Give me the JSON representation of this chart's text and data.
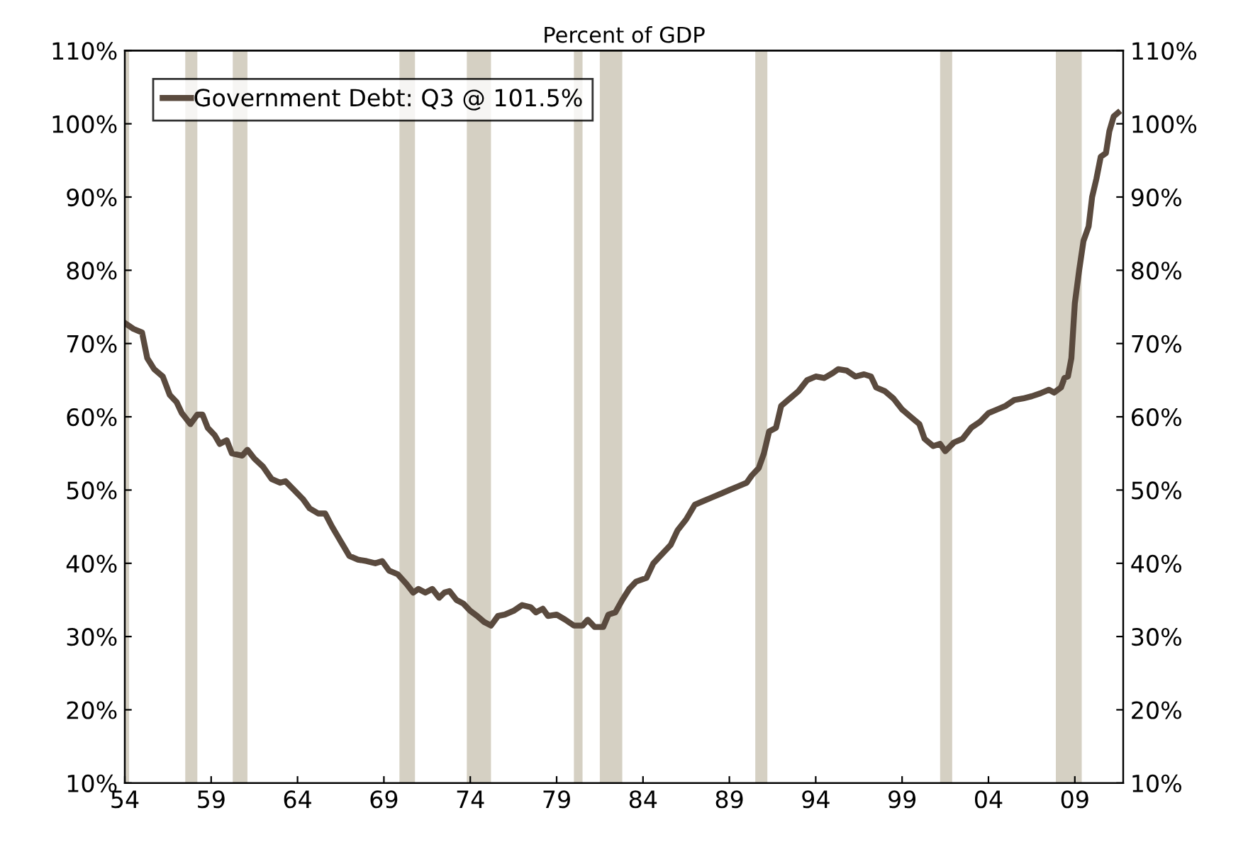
{
  "chart_data": {
    "type": "line",
    "title": "Percent of GDP",
    "x": [
      1954.0,
      1954.5,
      1955,
      1955.3,
      1955.7,
      1956.2,
      1956.6,
      1957,
      1957.3,
      1957.8,
      1958.2,
      1958.5,
      1958.8,
      1959.2,
      1959.5,
      1959.9,
      1960.2,
      1960.8,
      1961.1,
      1961.5,
      1962,
      1962.5,
      1963,
      1963.3,
      1963.8,
      1964.3,
      1964.7,
      1965.2,
      1965.6,
      1966,
      1966.5,
      1967,
      1967.5,
      1968,
      1968.5,
      1968.9,
      1969.3,
      1969.8,
      1970.3,
      1970.7,
      1971,
      1971.4,
      1971.8,
      1972.2,
      1972.5,
      1972.8,
      1973.2,
      1973.6,
      1974,
      1974.4,
      1974.8,
      1975.2,
      1975.6,
      1976,
      1976.5,
      1977,
      1977.5,
      1977.8,
      1978.2,
      1978.5,
      1979,
      1979.5,
      1980,
      1980.5,
      1980.8,
      1981.2,
      1981.7,
      1982,
      1982.4,
      1982.8,
      1983.2,
      1983.6,
      1984.2,
      1984.6,
      1985,
      1985.6,
      1986,
      1986.5,
      1987,
      1987.5,
      1988,
      1988.5,
      1989,
      1989.5,
      1990,
      1990.3,
      1990.7,
      1991,
      1991.3,
      1991.7,
      1992,
      1992.5,
      1993,
      1993.5,
      1994,
      1994.5,
      1995,
      1995.3,
      1995.8,
      1996.3,
      1996.8,
      1997.2,
      1997.5,
      1998,
      1998.5,
      1999,
      1999.5,
      2000,
      2000.3,
      2000.8,
      2001.2,
      2001.5,
      2002,
      2002.5,
      2003,
      2003.5,
      2004,
      2004.5,
      2005,
      2005.5,
      2006,
      2006.5,
      2007,
      2007.5,
      2007.8,
      2008.2,
      2008.4,
      2008.6,
      2008.8,
      2009,
      2009.25,
      2009.5,
      2009.8,
      2010,
      2010.25,
      2010.5,
      2010.8,
      2011,
      2011.25,
      2011.5
    ],
    "series": [
      {
        "name": "Government Debt: Q3 @ 101.5%",
        "color": "#5a4a3e",
        "values": [
          72.8,
          72,
          71.5,
          68,
          66.5,
          65.5,
          63,
          62,
          60.5,
          59,
          60.3,
          60.3,
          58.5,
          57.5,
          56.3,
          56.8,
          55,
          54.7,
          55.5,
          54.3,
          53.2,
          51.5,
          51,
          51.2,
          50,
          48.8,
          47.5,
          46.8,
          46.8,
          45,
          43,
          41,
          40.5,
          40.3,
          40,
          40.3,
          39,
          38.5,
          37.2,
          36,
          36.5,
          36,
          36.5,
          35.3,
          36,
          36.2,
          35,
          34.5,
          33.5,
          32.8,
          32,
          31.5,
          32.8,
          33,
          33.5,
          34.3,
          34,
          33.3,
          33.8,
          32.8,
          33,
          32.3,
          31.5,
          31.5,
          32.3,
          31.3,
          31.3,
          33,
          33.3,
          35,
          36.5,
          37.5,
          38,
          40,
          41,
          42.5,
          44.5,
          46,
          48,
          48.5,
          49,
          49.5,
          50,
          50.5,
          51,
          52,
          53,
          55,
          58,
          58.5,
          61.5,
          62.5,
          63.5,
          65,
          65.5,
          65.3,
          66,
          66.5,
          66.3,
          65.5,
          65.8,
          65.5,
          64,
          63.5,
          62.5,
          61,
          60,
          59,
          57,
          56,
          56.3,
          55.3,
          56.5,
          57,
          58.5,
          59.3,
          60.5,
          61,
          61.5,
          62.3,
          62.5,
          62.8,
          63.2,
          63.7,
          63.3,
          64,
          65.3,
          65.5,
          68,
          75.5,
          80,
          84,
          86,
          90,
          92.5,
          95.5,
          96,
          99,
          101,
          101.5
        ]
      }
    ],
    "xlim": [
      1954,
      2011.8
    ],
    "xticks": [
      {
        "value": 1954,
        "label": "54"
      },
      {
        "value": 1959,
        "label": "59"
      },
      {
        "value": 1964,
        "label": "64"
      },
      {
        "value": 1969,
        "label": "69"
      },
      {
        "value": 1974,
        "label": "74"
      },
      {
        "value": 1979,
        "label": "79"
      },
      {
        "value": 1984,
        "label": "84"
      },
      {
        "value": 1989,
        "label": "89"
      },
      {
        "value": 1994,
        "label": "94"
      },
      {
        "value": 1999,
        "label": "99"
      },
      {
        "value": 2004,
        "label": "04"
      },
      {
        "value": 2009,
        "label": "09"
      }
    ],
    "ylim": [
      10,
      110
    ],
    "yticks": [
      {
        "value": 10,
        "label": "10%"
      },
      {
        "value": 20,
        "label": "20%"
      },
      {
        "value": 30,
        "label": "30%"
      },
      {
        "value": 40,
        "label": "40%"
      },
      {
        "value": 50,
        "label": "50%"
      },
      {
        "value": 60,
        "label": "60%"
      },
      {
        "value": 70,
        "label": "70%"
      },
      {
        "value": 80,
        "label": "80%"
      },
      {
        "value": 90,
        "label": "90%"
      },
      {
        "value": 100,
        "label": "100%"
      },
      {
        "value": 110,
        "label": "110%"
      }
    ],
    "y2lim": [
      10,
      110
    ],
    "y2ticks": [
      {
        "value": 10,
        "label": "10%"
      },
      {
        "value": 20,
        "label": "20%"
      },
      {
        "value": 30,
        "label": "30%"
      },
      {
        "value": 40,
        "label": "40%"
      },
      {
        "value": 50,
        "label": "50%"
      },
      {
        "value": 60,
        "label": "60%"
      },
      {
        "value": 70,
        "label": "70%"
      },
      {
        "value": 80,
        "label": "80%"
      },
      {
        "value": 90,
        "label": "90%"
      },
      {
        "value": 100,
        "label": "100%"
      },
      {
        "value": 110,
        "label": "110%"
      }
    ],
    "bands": [
      {
        "axis": "x",
        "from": 1954,
        "to": 1954.25,
        "color": "#d5d0c3"
      },
      {
        "axis": "x",
        "from": 1957.5,
        "to": 1958.2,
        "color": "#d5d0c3"
      },
      {
        "axis": "x",
        "from": 1960.25,
        "to": 1961.1,
        "color": "#d5d0c3"
      },
      {
        "axis": "x",
        "from": 1969.9,
        "to": 1970.8,
        "color": "#d5d0c3"
      },
      {
        "axis": "x",
        "from": 1973.8,
        "to": 1975.2,
        "color": "#d5d0c3"
      },
      {
        "axis": "x",
        "from": 1980.0,
        "to": 1980.5,
        "color": "#d5d0c3"
      },
      {
        "axis": "x",
        "from": 1981.5,
        "to": 1982.8,
        "color": "#d5d0c3"
      },
      {
        "axis": "x",
        "from": 1990.5,
        "to": 1991.2,
        "color": "#d5d0c3"
      },
      {
        "axis": "x",
        "from": 2001.2,
        "to": 2001.9,
        "color": "#d5d0c3"
      },
      {
        "axis": "x",
        "from": 2007.9,
        "to": 2009.4,
        "color": "#d5d0c3"
      }
    ],
    "legend": "top left",
    "grid": false,
    "marker": "none",
    "line_style": "solid"
  }
}
